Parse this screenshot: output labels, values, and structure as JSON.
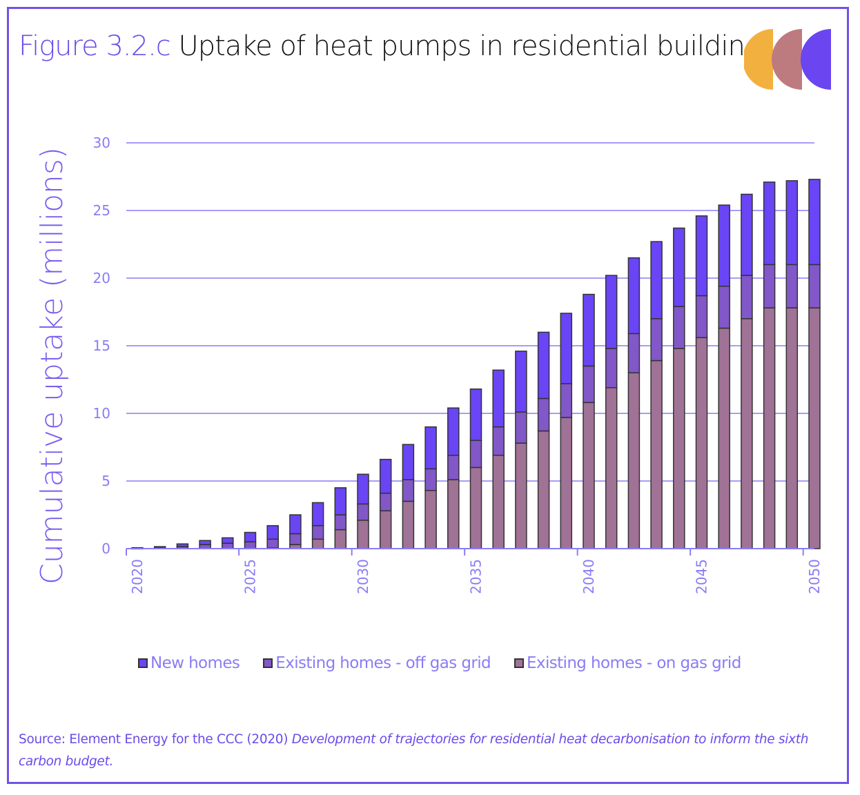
{
  "header": {
    "figure_label": "Figure 3.2.c",
    "title": "Uptake of heat pumps in residential buildings"
  },
  "logo": {
    "colors": [
      "#f2b03f",
      "#bd7b80",
      "#6a45f0"
    ]
  },
  "colors": {
    "accent": "#6a4be8",
    "grid": "#8a7cf5",
    "new_homes": "#6a45f5",
    "off_gas": "#8257c8",
    "on_gas": "#a07296",
    "bar_outline": "#333333"
  },
  "chart_data": {
    "type": "bar",
    "stacked": true,
    "title": "Uptake of heat pumps in residential buildings",
    "xlabel": "",
    "ylabel": "Cumulative uptake (millions)",
    "ylim": [
      0,
      30
    ],
    "yticks": [
      0,
      5,
      10,
      15,
      20,
      25,
      30
    ],
    "xtick_labels": [
      "2020",
      "2025",
      "2030",
      "2035",
      "2040",
      "2045",
      "2050"
    ],
    "grid": true,
    "legend_position": "bottom",
    "categories": [
      "2020",
      "2021",
      "2022",
      "2023",
      "2024",
      "2025",
      "2026",
      "2027",
      "2028",
      "2029",
      "2030",
      "2031",
      "2032",
      "2033",
      "2034",
      "2035",
      "2036",
      "2037",
      "2038",
      "2039",
      "2040",
      "2041",
      "2042",
      "2043",
      "2044",
      "2045",
      "2046",
      "2047",
      "2048",
      "2049",
      "2050"
    ],
    "series": [
      {
        "name": "Existing homes - on gas grid",
        "values": [
          0.0,
          0.0,
          0.0,
          0.0,
          0.0,
          0.0,
          0.05,
          0.3,
          0.7,
          1.4,
          2.1,
          2.8,
          3.5,
          4.3,
          5.1,
          6.0,
          6.9,
          7.8,
          8.7,
          9.7,
          10.8,
          11.9,
          13.0,
          13.9,
          14.8,
          15.6,
          16.3,
          17.0,
          17.8,
          17.8,
          17.8
        ]
      },
      {
        "name": "Existing homes - off gas grid",
        "values": [
          0.02,
          0.05,
          0.15,
          0.3,
          0.4,
          0.5,
          0.65,
          0.8,
          1.0,
          1.1,
          1.2,
          1.3,
          1.6,
          1.6,
          1.8,
          2.0,
          2.1,
          2.3,
          2.4,
          2.5,
          2.7,
          2.9,
          2.9,
          3.1,
          3.1,
          3.1,
          3.1,
          3.2,
          3.2,
          3.2,
          3.2
        ]
      },
      {
        "name": "New homes",
        "values": [
          0.05,
          0.1,
          0.2,
          0.3,
          0.4,
          0.7,
          1.0,
          1.4,
          1.7,
          2.0,
          2.2,
          2.5,
          2.6,
          3.1,
          3.5,
          3.8,
          4.2,
          4.5,
          4.9,
          5.2,
          5.3,
          5.4,
          5.6,
          5.7,
          5.8,
          5.9,
          6.0,
          6.0,
          6.1,
          6.2,
          6.3
        ]
      }
    ]
  },
  "legend": [
    {
      "label": "New homes",
      "color_key": "new_homes"
    },
    {
      "label": "Existing homes - off gas grid",
      "color_key": "off_gas"
    },
    {
      "label": "Existing homes - on gas grid",
      "color_key": "on_gas"
    }
  ],
  "source": {
    "prefix": "Source: Element Energy for the CCC (2020) ",
    "italic": "Development of trajectories for residential heat decarbonisation to inform the sixth carbon budget."
  }
}
